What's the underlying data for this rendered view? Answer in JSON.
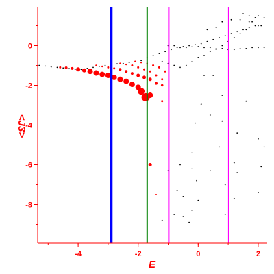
{
  "chart_data": {
    "type": "scatter",
    "title": "",
    "xlabel": "E",
    "ylabel": "<J3>",
    "xlim": [
      -5.35,
      2.3
    ],
    "ylim": [
      -9.95,
      1.95
    ],
    "x_ticks": [
      -4,
      -2,
      0,
      2
    ],
    "x_tick_labels": [
      "-4",
      "-2",
      "0",
      "2"
    ],
    "y_ticks": [
      0,
      -2,
      -4,
      -6,
      -8
    ],
    "y_tick_labels": [
      "0",
      "-2",
      "-4",
      "-6",
      "-8"
    ],
    "grid": false,
    "axis_color": "#ff0000",
    "vertical_lines": [
      {
        "x": -2.9,
        "color": "#0000ff"
      },
      {
        "x": -1.7,
        "color": "#008000"
      },
      {
        "x": -0.98,
        "color": "#ff00ff"
      },
      {
        "x": 1.02,
        "color": "#ff00ff"
      }
    ],
    "series": [
      {
        "color": "#000000",
        "marker": "small-dot",
        "points": [
          [
            -5.3,
            -1.0
          ],
          [
            -5.1,
            -1.03
          ],
          [
            -4.9,
            -1.07
          ],
          [
            -4.7,
            -1.1
          ],
          [
            -4.5,
            -1.13
          ],
          [
            -4.3,
            -1.16
          ],
          [
            -4.1,
            -1.2
          ],
          [
            -3.9,
            -1.2
          ],
          [
            -3.7,
            -1.15
          ],
          [
            -3.5,
            -1.1
          ],
          [
            -3.3,
            -1.05
          ],
          [
            -3.1,
            -1.0
          ],
          [
            -2.9,
            -0.95
          ],
          [
            -2.7,
            -0.92
          ],
          [
            -2.5,
            -0.9
          ],
          [
            -2.3,
            -0.85
          ],
          [
            -2.1,
            -0.8
          ],
          [
            -1.9,
            -0.75
          ],
          [
            -1.7,
            -0.6
          ],
          [
            -1.5,
            -0.5
          ],
          [
            -1.3,
            -0.4
          ],
          [
            -1.1,
            -0.3
          ],
          [
            -0.9,
            -0.2
          ],
          [
            -0.7,
            -0.1
          ],
          [
            -0.5,
            -0.05
          ],
          [
            -0.3,
            0.0
          ],
          [
            -0.1,
            0.05
          ],
          [
            0.1,
            0.1
          ],
          [
            0.3,
            0.2
          ],
          [
            0.5,
            0.3
          ],
          [
            0.7,
            0.4
          ],
          [
            0.9,
            0.5
          ],
          [
            1.1,
            0.6
          ],
          [
            1.3,
            0.7
          ],
          [
            1.5,
            0.8
          ],
          [
            1.7,
            0.9
          ],
          [
            1.9,
            1.0
          ],
          [
            2.1,
            1.0
          ],
          [
            -1.0,
            0.0
          ],
          [
            -0.8,
            0.0
          ],
          [
            -0.6,
            -0.1
          ],
          [
            -0.4,
            -0.1
          ],
          [
            -0.2,
            -0.05
          ],
          [
            0.0,
            -0.05
          ],
          [
            0.2,
            -0.1
          ],
          [
            0.4,
            -0.1
          ],
          [
            0.6,
            -0.15
          ],
          [
            0.8,
            -0.15
          ],
          [
            1.0,
            -0.2
          ],
          [
            1.2,
            -0.2
          ],
          [
            1.4,
            -0.15
          ],
          [
            1.6,
            -0.15
          ],
          [
            1.8,
            -0.1
          ],
          [
            2.0,
            -0.1
          ],
          [
            2.2,
            -0.1
          ],
          [
            -1.2,
            -0.8
          ],
          [
            -1.0,
            -0.9
          ],
          [
            -0.8,
            -1.0
          ],
          [
            -0.6,
            -1.1
          ],
          [
            -0.4,
            -1.0
          ],
          [
            -0.2,
            -0.8
          ],
          [
            0.0,
            -0.6
          ],
          [
            0.2,
            -0.5
          ],
          [
            0.4,
            -0.3
          ],
          [
            0.6,
            -0.2
          ],
          [
            0.8,
            0.0
          ],
          [
            1.0,
            0.2
          ],
          [
            1.2,
            0.4
          ],
          [
            1.4,
            0.6
          ],
          [
            1.6,
            0.8
          ],
          [
            1.8,
            1.2
          ],
          [
            2.0,
            1.5
          ],
          [
            2.2,
            1.4
          ],
          [
            0.3,
            0.8
          ],
          [
            0.6,
            0.9
          ],
          [
            0.8,
            1.2
          ],
          [
            1.1,
            1.3
          ],
          [
            1.4,
            1.3
          ],
          [
            1.7,
            1.2
          ],
          [
            2.0,
            1.0
          ],
          [
            1.5,
            1.6
          ],
          [
            1.7,
            1.5
          ],
          [
            1.9,
            1.4
          ],
          [
            0.2,
            -1.5
          ],
          [
            0.5,
            -1.5
          ],
          [
            0.8,
            -2.5
          ],
          [
            1.6,
            -2.8
          ],
          [
            0.1,
            -2.95
          ],
          [
            0.4,
            -3.5
          ],
          [
            -0.1,
            -3.9
          ],
          [
            0.8,
            -3.8
          ],
          [
            1.3,
            -4.4
          ],
          [
            2.0,
            -4.7
          ],
          [
            0.7,
            -5.1
          ],
          [
            2.2,
            -5.1
          ],
          [
            -0.2,
            -5.4
          ],
          [
            1.2,
            -5.9
          ],
          [
            -0.2,
            -6.2
          ],
          [
            -0.6,
            -6.0
          ],
          [
            0.4,
            -6.3
          ],
          [
            2.1,
            -6.1
          ],
          [
            -1.0,
            -6.3
          ],
          [
            1.3,
            -6.4
          ],
          [
            -0.05,
            -6.8
          ],
          [
            0.9,
            -7.0
          ],
          [
            -0.7,
            -7.3
          ],
          [
            2.0,
            -7.4
          ],
          [
            -0.5,
            -7.6
          ],
          [
            0.0,
            -7.8
          ],
          [
            1.2,
            -7.7
          ],
          [
            -0.2,
            -8.3
          ],
          [
            0.9,
            -8.5
          ],
          [
            -0.8,
            -8.5
          ],
          [
            -0.5,
            -8.6
          ],
          [
            -1.2,
            -8.8
          ],
          [
            -0.3,
            -8.9
          ]
        ]
      },
      {
        "color": "#ff0000",
        "marker": "scaled-dot",
        "points": [
          [
            -4.6,
            -1.1,
            1.5
          ],
          [
            -4.4,
            -1.12,
            2
          ],
          [
            -4.2,
            -1.15,
            2
          ],
          [
            -4.0,
            -1.2,
            3
          ],
          [
            -3.8,
            -1.25,
            3
          ],
          [
            -3.6,
            -1.3,
            4
          ],
          [
            -3.4,
            -1.38,
            4
          ],
          [
            -3.2,
            -1.45,
            4
          ],
          [
            -3.0,
            -1.5,
            4
          ],
          [
            -2.8,
            -1.6,
            4
          ],
          [
            -2.6,
            -1.7,
            4
          ],
          [
            -2.4,
            -1.8,
            4
          ],
          [
            -2.2,
            -1.95,
            4
          ],
          [
            -2.0,
            -2.1,
            4
          ],
          [
            -1.9,
            -2.3,
            5
          ],
          [
            -1.75,
            -2.6,
            6
          ],
          [
            -1.6,
            -2.5,
            4
          ],
          [
            -3.4,
            -1.0,
            1.2
          ],
          [
            -3.2,
            -1.05,
            1.2
          ],
          [
            -3.0,
            -1.1,
            1.5
          ],
          [
            -2.8,
            -1.15,
            1.5
          ],
          [
            -2.6,
            -1.2,
            2
          ],
          [
            -2.4,
            -1.3,
            2
          ],
          [
            -2.2,
            -1.4,
            2
          ],
          [
            -2.0,
            -1.5,
            2.5
          ],
          [
            -1.8,
            -1.6,
            2.5
          ],
          [
            -1.6,
            -1.7,
            2.5
          ],
          [
            -1.4,
            -1.9,
            2
          ],
          [
            -1.2,
            -2.0,
            1.8
          ],
          [
            -2.6,
            -0.9,
            1.2
          ],
          [
            -2.4,
            -0.95,
            1.2
          ],
          [
            -2.2,
            -1.0,
            1.5
          ],
          [
            -2.0,
            -1.1,
            1.5
          ],
          [
            -1.8,
            -1.2,
            1.5
          ],
          [
            -1.6,
            -1.3,
            1.5
          ],
          [
            -1.4,
            -1.5,
            1.5
          ],
          [
            -1.2,
            -1.7,
            1.5
          ],
          [
            -2.1,
            -0.8,
            1.2
          ],
          [
            -1.9,
            -0.85,
            1.2
          ],
          [
            -1.7,
            -0.9,
            1.2
          ],
          [
            -1.5,
            -1.0,
            1.5
          ],
          [
            -1.3,
            -1.1,
            1.5
          ],
          [
            -1.1,
            -1.3,
            1.5
          ],
          [
            -1.2,
            -2.8,
            1.5
          ],
          [
            -1.6,
            -6.0,
            2.5
          ],
          [
            -1.4,
            -7.5,
            1
          ]
        ]
      }
    ]
  }
}
